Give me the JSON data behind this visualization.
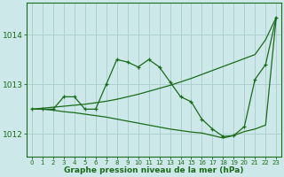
{
  "line1_x": [
    0,
    1,
    2,
    3,
    4,
    5,
    6,
    7,
    8,
    9,
    10,
    11,
    12,
    13,
    14,
    15,
    16,
    17,
    18,
    19,
    20,
    21,
    22,
    23
  ],
  "line1_y": [
    1012.5,
    1012.52,
    1012.54,
    1012.56,
    1012.58,
    1012.6,
    1012.63,
    1012.66,
    1012.7,
    1012.75,
    1012.8,
    1012.86,
    1012.92,
    1012.98,
    1013.05,
    1013.12,
    1013.2,
    1013.28,
    1013.36,
    1013.44,
    1013.52,
    1013.6,
    1013.9,
    1014.35
  ],
  "line2_x": [
    0,
    1,
    2,
    3,
    4,
    5,
    6,
    7,
    8,
    9,
    10,
    11,
    12,
    13,
    14,
    15,
    16,
    17,
    18,
    19,
    20,
    21,
    22,
    23
  ],
  "line2_y": [
    1012.5,
    1012.5,
    1012.5,
    1012.75,
    1012.75,
    1012.5,
    1012.5,
    1013.0,
    1013.5,
    1013.45,
    1013.35,
    1013.5,
    1013.35,
    1013.05,
    1012.75,
    1012.65,
    1012.3,
    1012.1,
    1011.95,
    1011.97,
    1012.15,
    1013.1,
    1013.4,
    1014.35
  ],
  "line3_x": [
    0,
    1,
    2,
    3,
    4,
    5,
    6,
    7,
    8,
    9,
    10,
    11,
    12,
    13,
    14,
    15,
    16,
    17,
    18,
    19,
    20,
    21,
    22,
    23
  ],
  "line3_y": [
    1012.5,
    1012.5,
    1012.48,
    1012.45,
    1012.43,
    1012.4,
    1012.37,
    1012.34,
    1012.3,
    1012.26,
    1012.22,
    1012.18,
    1012.14,
    1012.1,
    1012.07,
    1012.04,
    1012.02,
    1011.97,
    1011.92,
    1011.97,
    1012.05,
    1012.1,
    1012.18,
    1014.35
  ],
  "line_color": "#1a6b1a",
  "bg_color": "#cce8e8",
  "grid_color": "#aacccc",
  "xlabel": "Graphe pression niveau de la mer (hPa)",
  "yticks": [
    1012,
    1013,
    1014
  ],
  "xtick_labels": [
    "0",
    "1",
    "2",
    "3",
    "4",
    "5",
    "6",
    "7",
    "8",
    "9",
    "10",
    "11",
    "12",
    "13",
    "14",
    "15",
    "16",
    "17",
    "18",
    "19",
    "20",
    "21",
    "22",
    "23"
  ],
  "xticks": [
    0,
    1,
    2,
    3,
    4,
    5,
    6,
    7,
    8,
    9,
    10,
    11,
    12,
    13,
    14,
    15,
    16,
    17,
    18,
    19,
    20,
    21,
    22,
    23
  ],
  "ylim": [
    1011.55,
    1014.65
  ],
  "xlim": [
    -0.5,
    23.5
  ]
}
